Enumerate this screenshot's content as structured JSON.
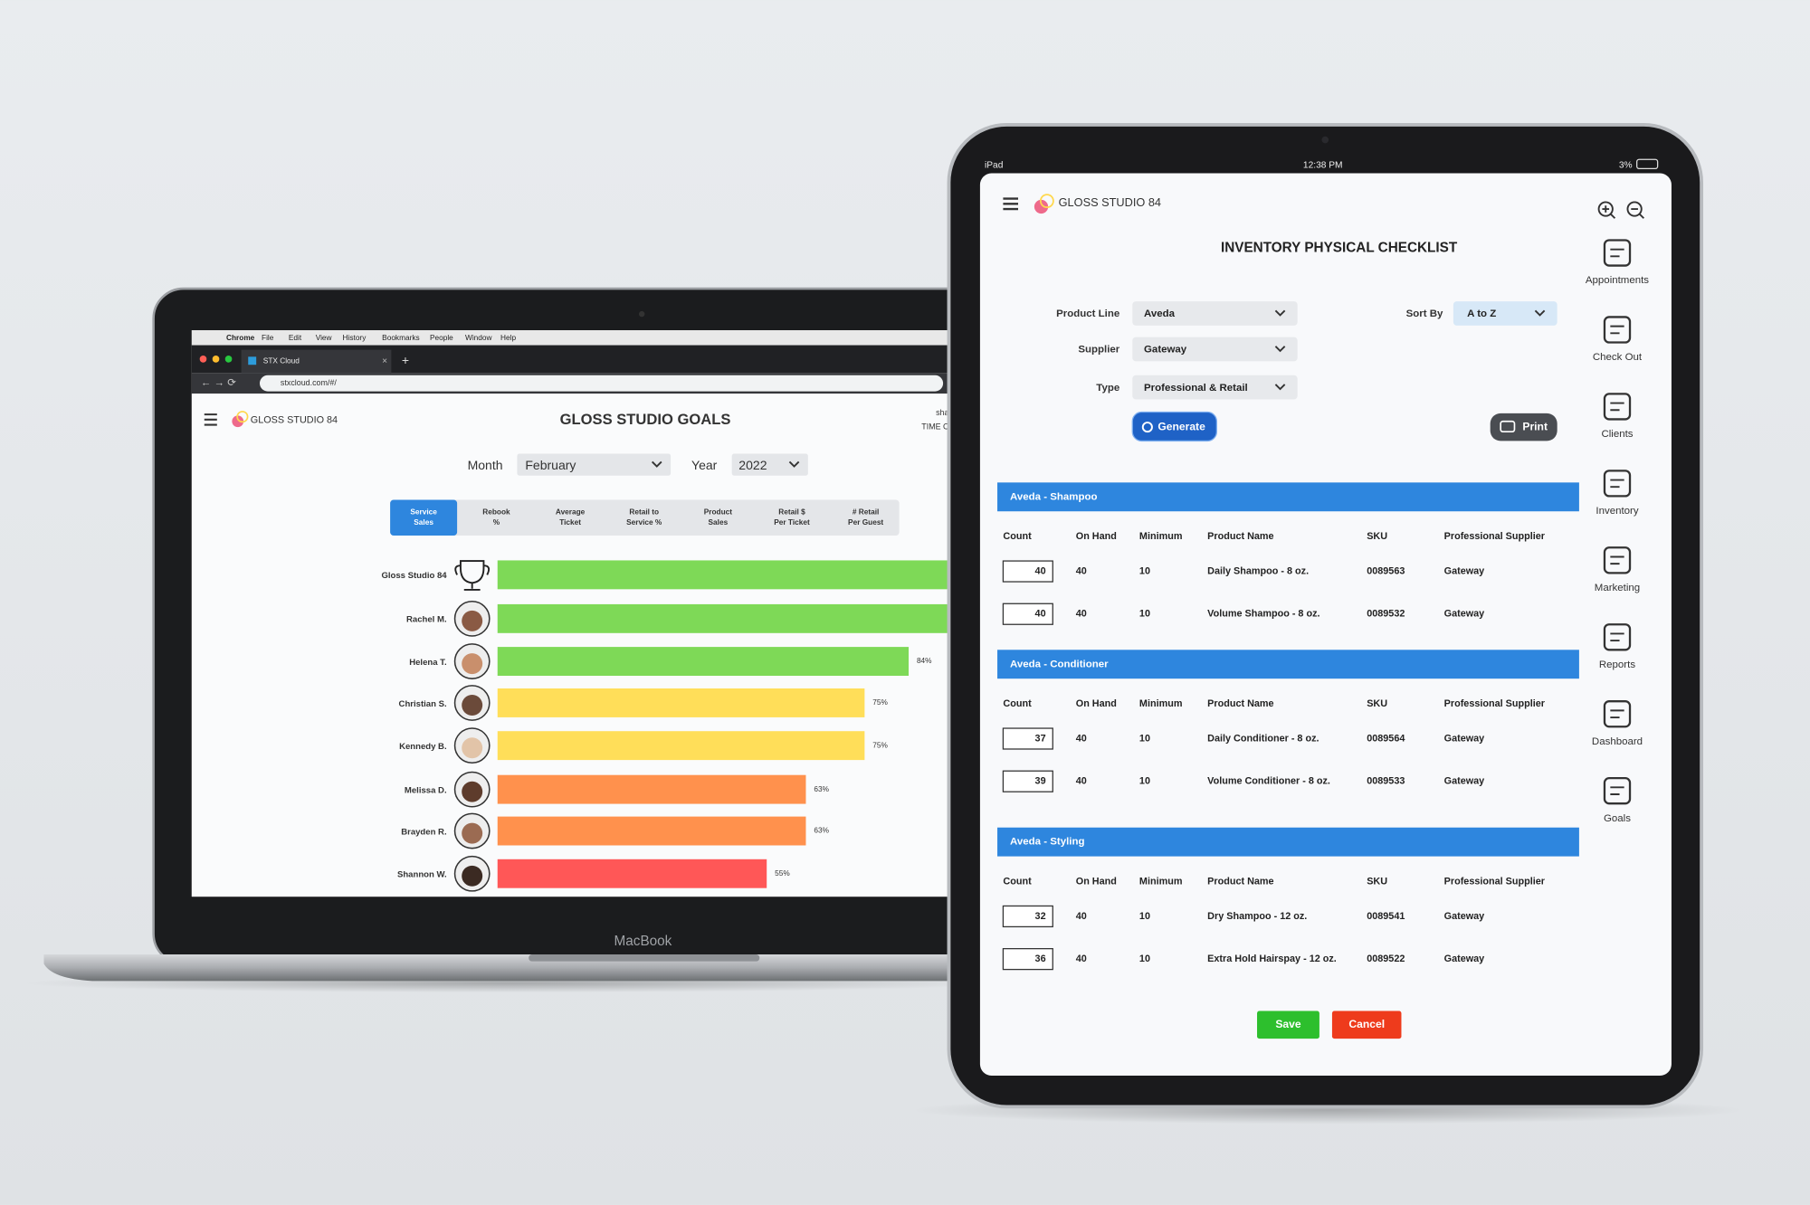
{
  "laptop": {
    "brand": "MacBook",
    "menu": [
      "Chrome",
      "File",
      "Edit",
      "View",
      "History",
      "Bookmarks",
      "People",
      "Window",
      "Help"
    ],
    "tab": "STX Cloud",
    "url": "stxcloud.com/#/",
    "app": {
      "logo": "GLOSS STUDIO 84",
      "title": "GLOSS STUDIO GOALS",
      "corner": [
        "sha",
        "TIME C"
      ],
      "month_label": "Month",
      "month": "February",
      "year_label": "Year",
      "year": "2022",
      "tabs": [
        [
          "Service",
          "Sales"
        ],
        [
          "Rebook",
          "%"
        ],
        [
          "Average",
          "Ticket"
        ],
        [
          "Retail to",
          "Service %"
        ],
        [
          "Product",
          "Sales"
        ],
        [
          "Retail $",
          "Per Ticket"
        ],
        [
          "# Retail",
          "Per Guest"
        ]
      ],
      "rows": [
        {
          "name": "Gloss Studio 84",
          "value": 100,
          "color": "#7ed957"
        },
        {
          "name": "Rachel M.",
          "value": 100,
          "color": "#7ed957"
        },
        {
          "name": "Helena T.",
          "value": 84,
          "label": "84%",
          "color": "#7ed957"
        },
        {
          "name": "Christian S.",
          "value": 75,
          "label": "75%",
          "color": "#ffde59"
        },
        {
          "name": "Kennedy B.",
          "value": 75,
          "label": "75%",
          "color": "#ffde59"
        },
        {
          "name": "Melissa D.",
          "value": 63,
          "label": "63%",
          "color": "#ff914d"
        },
        {
          "name": "Brayden R.",
          "value": 63,
          "label": "63%",
          "color": "#ff914d"
        },
        {
          "name": "Shannon W.",
          "value": 55,
          "label": "55%",
          "color": "#ff5757"
        }
      ]
    }
  },
  "ipad": {
    "status": {
      "device": "iPad",
      "time": "12:38 PM",
      "battery": "3%"
    },
    "logo": "GLOSS STUDIO 84",
    "title": "INVENTORY PHYSICAL CHECKLIST",
    "filters": [
      {
        "label": "Product Line",
        "value": "Aveda"
      },
      {
        "label": "Supplier",
        "value": "Gateway"
      },
      {
        "label": "Type",
        "value": "Professional & Retail"
      }
    ],
    "sort": {
      "label": "Sort By",
      "value": "A to Z"
    },
    "buttons": {
      "generate": "Generate",
      "print": "Print",
      "save": "Save",
      "cancel": "Cancel"
    },
    "columns": [
      "Count",
      "On Hand",
      "Minimum",
      "Product Name",
      "SKU",
      "Professional Supplier"
    ],
    "sections": [
      {
        "title": "Aveda - Shampoo",
        "rows": [
          [
            40,
            40,
            10,
            "Daily Shampoo - 8 oz.",
            "0089563",
            "Gateway"
          ],
          [
            40,
            40,
            10,
            "Volume Shampoo - 8 oz.",
            "0089532",
            "Gateway"
          ]
        ]
      },
      {
        "title": "Aveda - Conditioner",
        "rows": [
          [
            37,
            40,
            10,
            "Daily Conditioner - 8 oz.",
            "0089564",
            "Gateway"
          ],
          [
            39,
            40,
            10,
            "Volume Conditioner - 8 oz.",
            "0089533",
            "Gateway"
          ]
        ]
      },
      {
        "title": "Aveda - Styling",
        "rows": [
          [
            32,
            40,
            10,
            "Dry Shampoo - 12 oz.",
            "0089541",
            "Gateway"
          ],
          [
            36,
            40,
            10,
            "Extra Hold Hairspay - 12 oz.",
            "0089522",
            "Gateway"
          ]
        ]
      }
    ],
    "nav": [
      "Appointments",
      "Check Out",
      "Clients",
      "Inventory",
      "Marketing",
      "Reports",
      "Dashboard",
      "Goals"
    ]
  }
}
